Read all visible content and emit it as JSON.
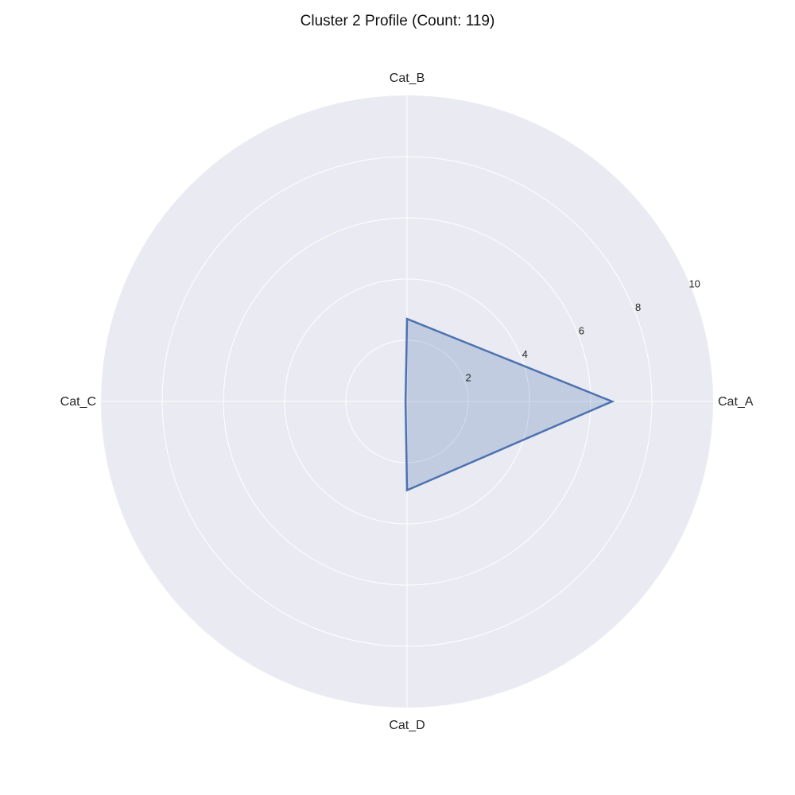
{
  "chart_data": {
    "type": "radar",
    "title": "Cluster 2 Profile (Count: 119)",
    "categories": [
      "Cat_A",
      "Cat_B",
      "Cat_C",
      "Cat_D"
    ],
    "values": [
      6.7,
      2.7,
      0.05,
      2.9
    ],
    "rlim": [
      0,
      10
    ],
    "r_ticks": [
      2,
      4,
      6,
      8,
      10
    ],
    "grid": true,
    "colors": {
      "panel_background": "#eaeaf2",
      "grid": "#ffffff",
      "series_line": "#4c72b0",
      "series_fill": "#4c72b0"
    }
  }
}
